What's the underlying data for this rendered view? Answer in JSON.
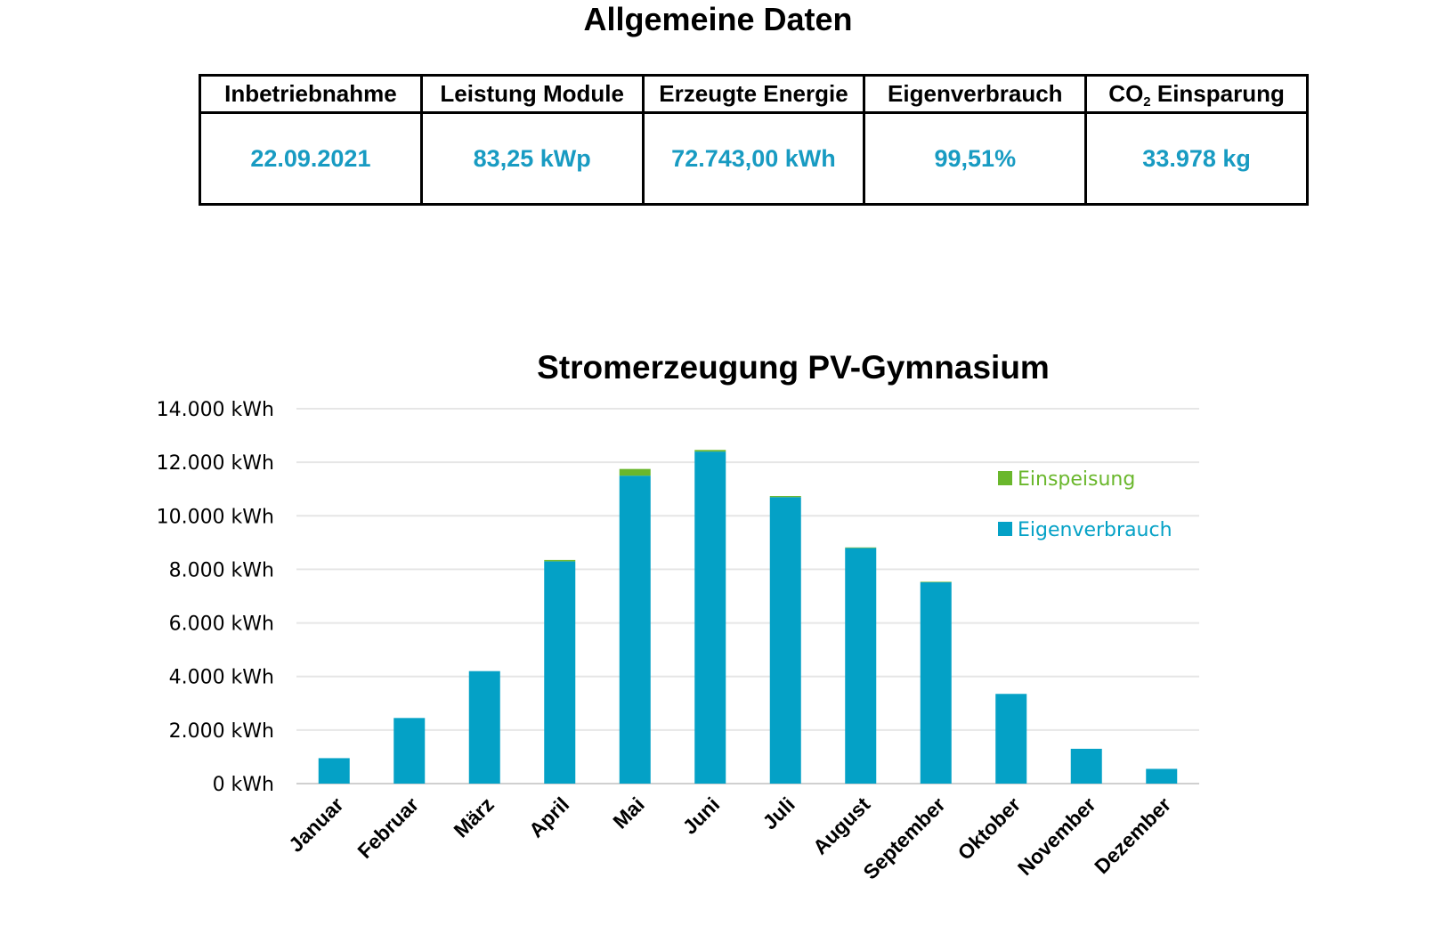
{
  "header": {
    "title": "Allgemeine Daten"
  },
  "stats": {
    "columns": [
      {
        "label": "Inbetriebnahme",
        "value": "22.09.2021"
      },
      {
        "label": "Leistung Module",
        "value": "83,25 kWp"
      },
      {
        "label": "Erzeugte Energie",
        "value": "72.743,00 kWh"
      },
      {
        "label": "Eigenverbrauch",
        "value": "99,51%"
      },
      {
        "label_main": "CO",
        "label_sub": "2",
        "label_rest": " Einsparung",
        "value": "33.978 kg"
      }
    ]
  },
  "colors": {
    "value_text": "#189bc2",
    "eigenverbrauch": "#04a1c6",
    "einspeisung": "#6ab72c",
    "grid": "#e6e6e6",
    "axis": "#d0d0d0"
  },
  "chart_data": {
    "type": "bar",
    "stacked": true,
    "title": "Stromerzeugung PV-Gymnasium",
    "xlabel": "",
    "ylabel": "",
    "categories": [
      "Januar",
      "Februar",
      "März",
      "April",
      "Mai",
      "Juni",
      "Juli",
      "August",
      "September",
      "Oktober",
      "November",
      "Dezember"
    ],
    "series": [
      {
        "name": "Eigenverbrauch",
        "color": "#04a1c6",
        "values": [
          950,
          2450,
          4200,
          8300,
          11500,
          12400,
          10700,
          8800,
          7520,
          3350,
          1300,
          550
        ]
      },
      {
        "name": "Einspeisung",
        "color": "#6ab72c",
        "values": [
          0,
          0,
          0,
          50,
          250,
          60,
          40,
          20,
          20,
          0,
          0,
          0
        ]
      }
    ],
    "ylim": [
      0,
      14000
    ],
    "yticks": [
      0,
      2000,
      4000,
      6000,
      8000,
      10000,
      12000,
      14000
    ],
    "ytick_labels": [
      "0 kWh",
      "2.000 kWh",
      "4.000 kWh",
      "6.000 kWh",
      "8.000 kWh",
      "10.000 kWh",
      "12.000 kWh",
      "14.000 kWh"
    ],
    "grid": true,
    "legend": {
      "placement": "right",
      "order": [
        "Einspeisung",
        "Eigenverbrauch"
      ]
    }
  }
}
